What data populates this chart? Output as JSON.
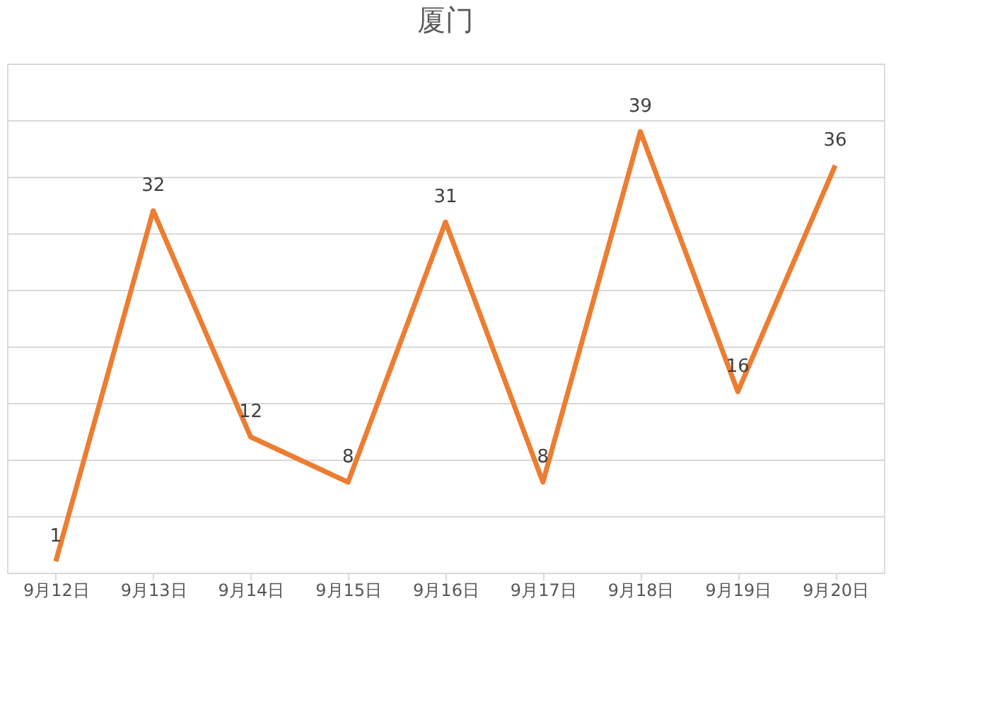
{
  "chart_data": {
    "type": "line",
    "title": "厦门",
    "categories": [
      "9月12日",
      "9月13日",
      "9月14日",
      "9月15日",
      "9月16日",
      "9月17日",
      "9月18日",
      "9月19日",
      "9月20日"
    ],
    "series": [
      {
        "color": "#ed7d31",
        "values": [
          1,
          32,
          12,
          8,
          31,
          8,
          39,
          16,
          36
        ]
      }
    ],
    "ylim": [
      0,
      45
    ],
    "yticks": [
      {
        "value": 0,
        "label": null
      },
      {
        "value": 5,
        "label": null
      },
      {
        "value": 10,
        "label": null
      },
      {
        "value": 15,
        "label": null
      },
      {
        "value": 20,
        "label": null
      },
      {
        "value": 25,
        "label": null
      },
      {
        "value": 30,
        "label": null
      },
      {
        "value": 35,
        "label": null
      },
      {
        "value": 40,
        "label": null
      },
      {
        "value": 45,
        "label": null
      }
    ],
    "tick_labels": "x",
    "grid": "y",
    "data_labels": true,
    "marker": "none",
    "line_style": "solid"
  }
}
